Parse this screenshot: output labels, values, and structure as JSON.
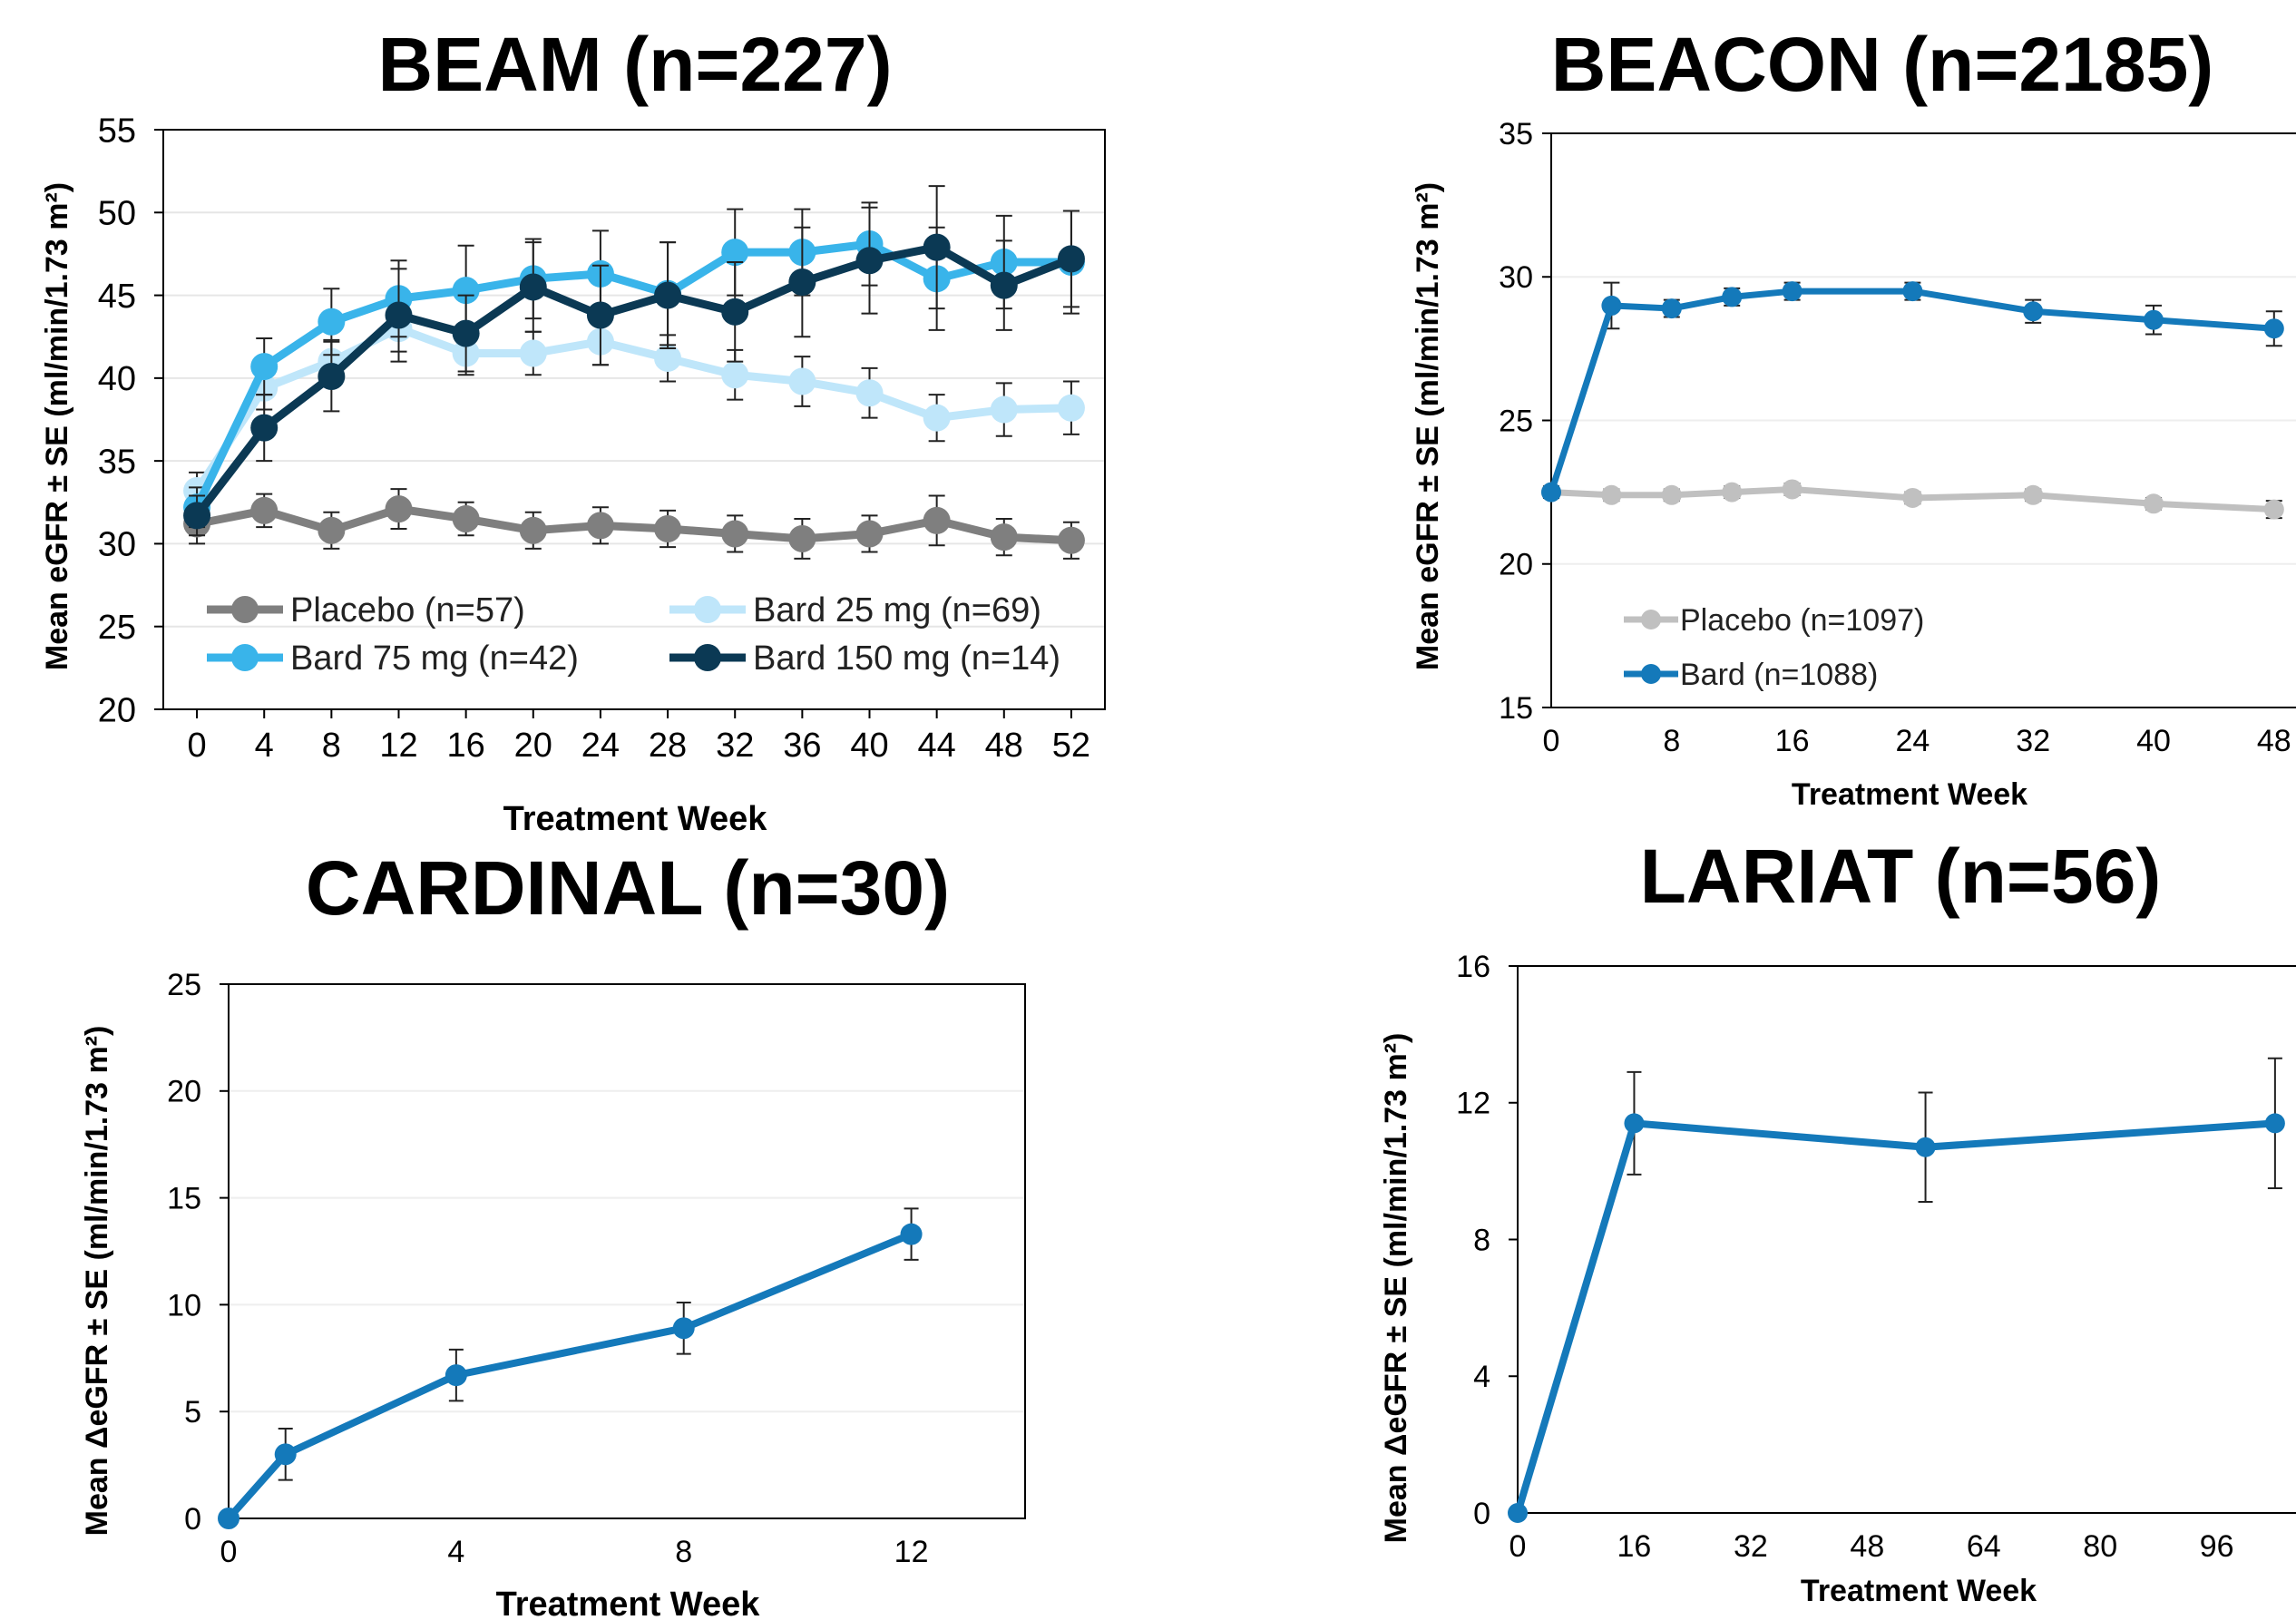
{
  "chart_data": [
    {
      "type": "line",
      "title": "BEAM (n=227)",
      "xlabel": "Treatment Week",
      "ylabel": "Mean eGFR ± SE (ml/min/1.73 m²)",
      "ylim": [
        20,
        55
      ],
      "yticks": [
        20,
        25,
        30,
        35,
        40,
        45,
        50,
        55
      ],
      "xticks": [
        0,
        4,
        8,
        12,
        16,
        20,
        24,
        28,
        32,
        36,
        40,
        44,
        48,
        52
      ],
      "xlim": [
        -2,
        54
      ],
      "grid": true,
      "legend": "inside-bottom",
      "series": [
        {
          "name": "Placebo (n=57)",
          "color": "#7f7f7f",
          "x": [
            0,
            4,
            8,
            12,
            16,
            20,
            24,
            28,
            32,
            36,
            40,
            44,
            48,
            52
          ],
          "y": [
            31.2,
            32.0,
            30.8,
            32.1,
            31.5,
            30.8,
            31.1,
            30.9,
            30.6,
            30.3,
            30.6,
            31.4,
            30.4,
            30.2
          ],
          "se": [
            1.2,
            1.0,
            1.1,
            1.2,
            1.0,
            1.1,
            1.1,
            1.1,
            1.1,
            1.2,
            1.1,
            1.5,
            1.1,
            1.1
          ]
        },
        {
          "name": "Bard 25 mg (n=69)",
          "color": "#bfe6fa",
          "x": [
            0,
            4,
            8,
            12,
            16,
            20,
            24,
            28,
            32,
            36,
            40,
            44,
            48,
            52
          ],
          "y": [
            33.2,
            39.4,
            41.0,
            43.0,
            41.5,
            41.5,
            42.2,
            41.2,
            40.2,
            39.8,
            39.1,
            37.6,
            38.1,
            38.2
          ],
          "se": [
            1.1,
            1.3,
            1.3,
            1.4,
            1.3,
            1.3,
            1.4,
            1.4,
            1.5,
            1.5,
            1.5,
            1.4,
            1.6,
            1.6
          ]
        },
        {
          "name": "Bard 75 mg (n=42)",
          "color": "#39b4ea",
          "x": [
            0,
            4,
            8,
            12,
            16,
            20,
            24,
            28,
            32,
            36,
            40,
            44,
            48,
            52
          ],
          "y": [
            32.2,
            40.7,
            43.4,
            44.8,
            45.3,
            46.0,
            46.3,
            45.1,
            47.6,
            47.6,
            48.1,
            46.0,
            47.0,
            47.0
          ],
          "se": [
            1.2,
            1.7,
            2.0,
            2.3,
            2.7,
            2.4,
            2.6,
            3.1,
            2.6,
            2.6,
            2.5,
            3.1,
            2.8,
            3.1
          ]
        },
        {
          "name": "Bard 150 mg (n=14)",
          "color": "#0b3954",
          "x": [
            0,
            4,
            8,
            12,
            16,
            20,
            24,
            28,
            32,
            36,
            40,
            44,
            48,
            52
          ],
          "y": [
            31.7,
            37.0,
            40.1,
            43.8,
            42.7,
            45.5,
            43.8,
            45.0,
            44.0,
            45.8,
            47.1,
            47.9,
            45.6,
            47.2
          ],
          "se": [
            1.2,
            2.0,
            2.1,
            2.8,
            2.3,
            2.7,
            3.0,
            3.2,
            3.0,
            3.3,
            3.2,
            3.7,
            2.7,
            2.9
          ]
        }
      ]
    },
    {
      "type": "line",
      "title": "BEACON (n=2185)",
      "xlabel": "Treatment Week",
      "ylabel": "Mean eGFR ± SE (ml/min/1.73 m²)",
      "ylim": [
        15,
        35
      ],
      "yticks": [
        15,
        20,
        25,
        30,
        35
      ],
      "xticks": [
        0,
        8,
        16,
        24,
        32,
        40,
        48
      ],
      "xlim": [
        0,
        50
      ],
      "grid": true,
      "legend": "bottom-left",
      "series": [
        {
          "name": "Placebo (n=1097)",
          "color": "#c0c0c0",
          "x": [
            0,
            4,
            8,
            12,
            16,
            24,
            32,
            40,
            48
          ],
          "y": [
            22.5,
            22.4,
            22.4,
            22.5,
            22.6,
            22.3,
            22.4,
            22.1,
            21.9
          ],
          "se": [
            0.2,
            0.2,
            0.2,
            0.2,
            0.2,
            0.2,
            0.2,
            0.2,
            0.3
          ]
        },
        {
          "name": "Bard (n=1088)",
          "color": "#1479ba",
          "x": [
            0,
            4,
            8,
            12,
            16,
            24,
            32,
            40,
            48
          ],
          "y": [
            22.5,
            29.0,
            28.9,
            29.3,
            29.5,
            29.5,
            28.8,
            28.5,
            28.2
          ],
          "se": [
            0.2,
            0.8,
            0.3,
            0.3,
            0.3,
            0.3,
            0.4,
            0.5,
            0.6
          ]
        }
      ]
    },
    {
      "type": "line",
      "title": "CARDINAL (n=30)",
      "xlabel": "Treatment Week",
      "ylabel": "Mean ΔeGFR ± SE (ml/min/1.73 m²)",
      "ylim": [
        0,
        25
      ],
      "yticks": [
        0,
        5,
        10,
        15,
        20,
        25
      ],
      "xticks": [
        0,
        4,
        8,
        12
      ],
      "xlim": [
        0,
        14
      ],
      "grid": true,
      "series": [
        {
          "name": "",
          "color": "#1479ba",
          "x": [
            0,
            1,
            4,
            8,
            12
          ],
          "y": [
            0,
            3.0,
            6.7,
            8.9,
            13.3
          ],
          "se": [
            0,
            1.2,
            1.2,
            1.2,
            1.2
          ]
        }
      ]
    },
    {
      "type": "line",
      "title": "LARIAT (n=56)",
      "xlabel": "Treatment Week",
      "ylabel": "Mean ΔeGFR ± SE (ml/min/1.73 m²)",
      "ylim": [
        0,
        16
      ],
      "yticks": [
        0,
        4,
        8,
        12,
        16
      ],
      "xticks": [
        0,
        16,
        32,
        48,
        64,
        80,
        96
      ],
      "xlim": [
        0,
        108
      ],
      "grid": false,
      "series": [
        {
          "name": "",
          "color": "#1479ba",
          "x": [
            0,
            16,
            56,
            104
          ],
          "y": [
            0,
            11.4,
            10.7,
            11.4
          ],
          "se": [
            0,
            1.5,
            1.6,
            1.9
          ]
        }
      ]
    }
  ]
}
